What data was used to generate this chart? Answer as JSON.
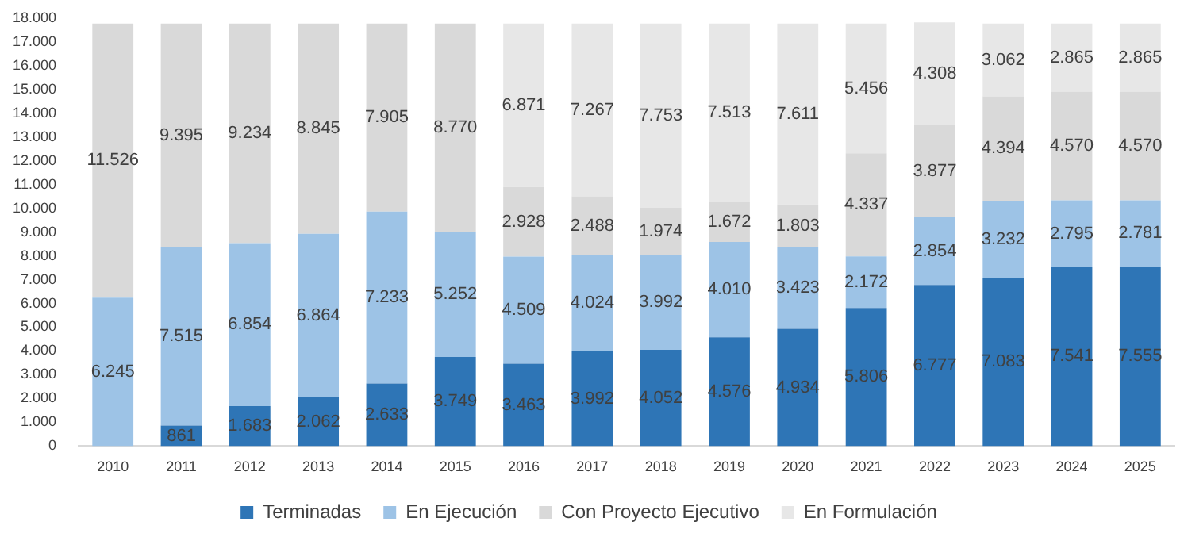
{
  "chart_data": {
    "type": "bar",
    "stacked": true,
    "categories": [
      "2010",
      "2011",
      "2012",
      "2013",
      "2014",
      "2015",
      "2016",
      "2017",
      "2018",
      "2019",
      "2020",
      "2021",
      "2022",
      "2023",
      "2024",
      "2025"
    ],
    "series": [
      {
        "name": "Terminadas",
        "color": "#2e75b6",
        "values": [
          null,
          861,
          1683,
          2062,
          2633,
          3749,
          3463,
          3992,
          4052,
          4576,
          4934,
          5806,
          6777,
          7083,
          7541,
          7555
        ],
        "value_labels": [
          null,
          "861",
          "1.683",
          "2.062",
          "2.633",
          "3.749",
          "3.463",
          "3.992",
          "4.052",
          "4.576",
          "4.934",
          "5.806",
          "6.777",
          "7.083",
          "7.541",
          "7.555"
        ]
      },
      {
        "name": "En Ejecución",
        "color": "#9dc3e6",
        "values": [
          6245,
          7515,
          6854,
          6864,
          7233,
          5252,
          4509,
          4024,
          3992,
          4010,
          3423,
          2172,
          2854,
          3232,
          2795,
          2781
        ],
        "value_labels": [
          "6.245",
          "7.515",
          "6.854",
          "6.864",
          "7.233",
          "5.252",
          "4.509",
          "4.024",
          "3.992",
          "4.010",
          "3.423",
          "2.172",
          "2.854",
          "3.232",
          "2.795",
          "2.781"
        ]
      },
      {
        "name": "Con Proyecto Ejecutivo",
        "color": "#d9d9d9",
        "values": [
          11526,
          9395,
          9234,
          8845,
          7905,
          8770,
          2928,
          2488,
          1974,
          1672,
          1803,
          4337,
          3877,
          4394,
          4570,
          4570
        ],
        "value_labels": [
          "11.526",
          "9.395",
          "9.234",
          "8.845",
          "7.905",
          "8.770",
          "2.928",
          "2.488",
          "1.974",
          "1.672",
          "1.803",
          "4.337",
          "3.877",
          "4.394",
          "4.570",
          "4.570"
        ]
      },
      {
        "name": "En Formulación",
        "color": "#e7e7e7",
        "values": [
          null,
          null,
          null,
          null,
          null,
          null,
          6871,
          7267,
          7753,
          7513,
          7611,
          5456,
          4308,
          3062,
          2865,
          2865
        ],
        "value_labels": [
          null,
          null,
          null,
          null,
          null,
          null,
          "6.871",
          "7.267",
          "7.753",
          "7.513",
          "7.611",
          "5.456",
          "4.308",
          "3.062",
          "2.865",
          "2.865"
        ]
      }
    ],
    "ylim": [
      0,
      18000
    ],
    "yticks": [
      0,
      {
        "value": 1000,
        "label": "1.000"
      },
      {
        "value": 2000,
        "label": "2.000"
      },
      {
        "value": 3000,
        "label": "3.000"
      },
      {
        "value": 4000,
        "label": "4.000"
      },
      {
        "value": 5000,
        "label": "5.000"
      },
      {
        "value": 6000,
        "label": "6.000"
      },
      {
        "value": 7000,
        "label": "7.000"
      },
      {
        "value": 8000,
        "label": "8.000"
      },
      {
        "value": 9000,
        "label": "9.000"
      },
      {
        "value": 10000,
        "label": "10.000"
      },
      {
        "value": 11000,
        "label": "11.000"
      },
      {
        "value": 12000,
        "label": "12.000"
      },
      {
        "value": 13000,
        "label": "13.000"
      },
      {
        "value": 14000,
        "label": "14.000"
      },
      {
        "value": 15000,
        "label": "15.000"
      },
      {
        "value": 16000,
        "label": "16.000"
      },
      {
        "value": 17000,
        "label": "17.000"
      },
      {
        "value": 18000,
        "label": "18.000"
      }
    ],
    "grid": false,
    "legend": "bottom"
  }
}
